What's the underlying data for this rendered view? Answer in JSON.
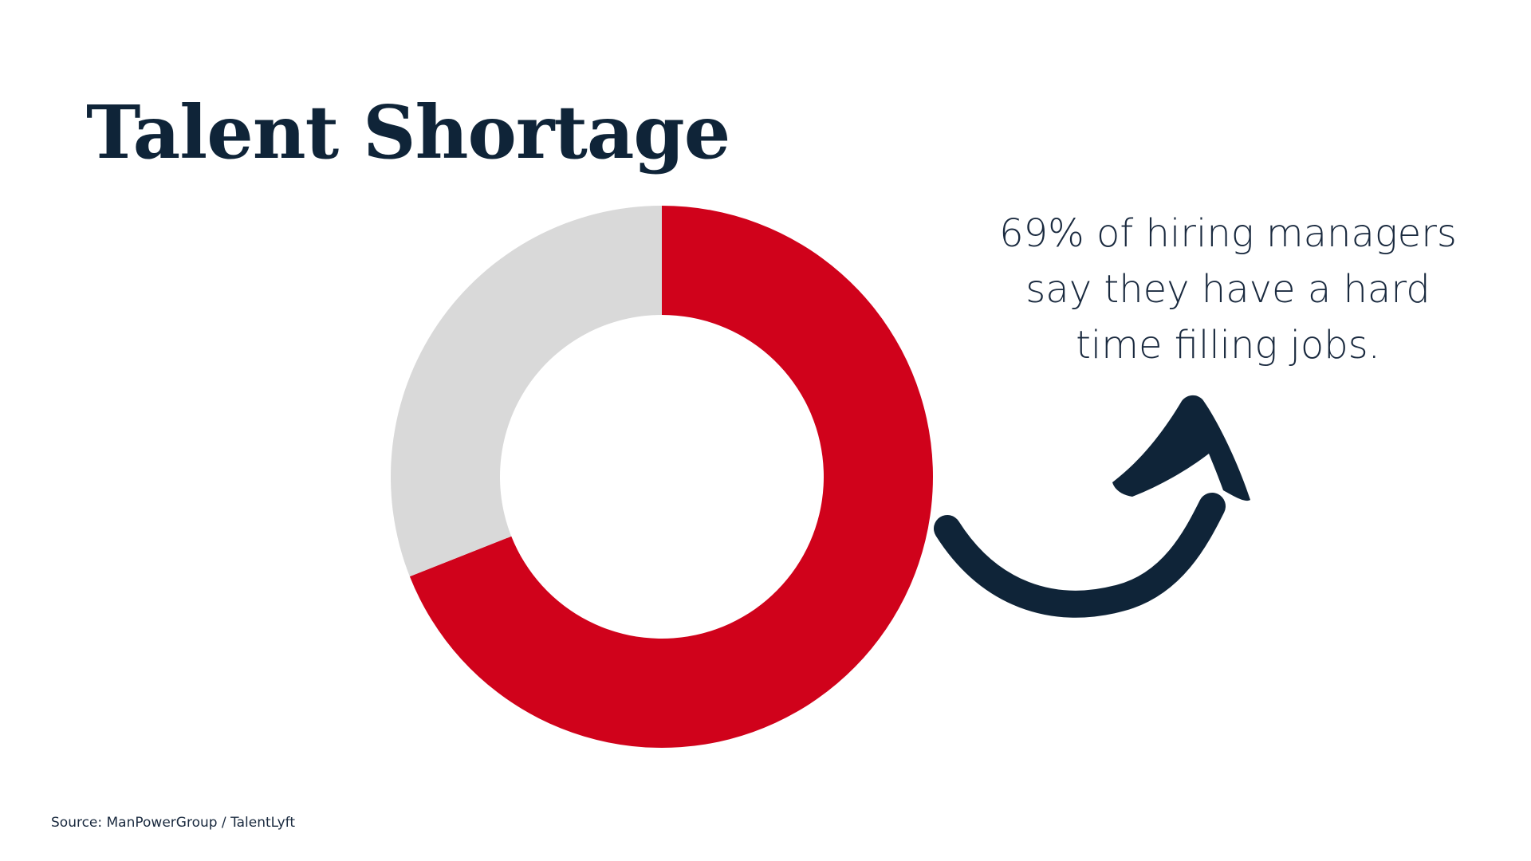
{
  "slide": {
    "title": "Talent Shortage",
    "caption": "69% of hiring managers say they have a hard time filling jobs.",
    "source": "Source: ManPowerGroup / TalentLyft",
    "colors": {
      "accent": "#D0021B",
      "remainder": "#D9D9D9",
      "text": "#0F2438"
    },
    "arrow_icon": "curved-arrow-icon"
  },
  "chart_data": {
    "type": "pie",
    "style": "donut",
    "slices": [
      {
        "label": "",
        "value": 69,
        "color": "#D0021B"
      },
      {
        "label": "",
        "value": 31,
        "color": "#D9D9D9"
      }
    ],
    "title": "",
    "legend": "none"
  }
}
